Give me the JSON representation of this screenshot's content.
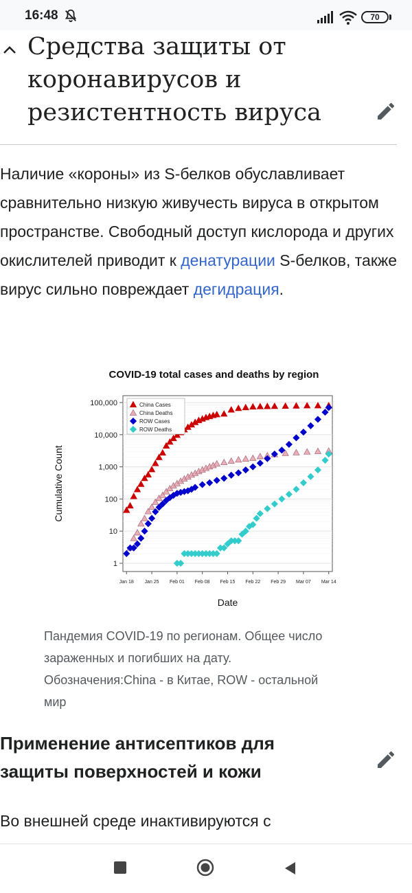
{
  "status_bar": {
    "time": "16:48",
    "battery": "70"
  },
  "section1": {
    "title": "Средства защиты от коронавирусов и резистентность вируса",
    "paragraph": {
      "t1": "Наличие «короны» из S-белков обуславливает сравнительно низкую живучесть вируса в открытом пространстве. Свободный доступ кислорода и других окислителей приводит к ",
      "link1": "денатурации",
      "t2": " S-белков, также вирус сильно повреждает ",
      "link2": "дегидрация",
      "t3": "."
    }
  },
  "figure": {
    "caption": "Пандемия COVID-19 по регионам. Общее число зараженных и погибших на дату. Обозначения:China - в Китае, ROW - остальной мир"
  },
  "chart_data": {
    "type": "scatter",
    "title": "COVID-19 total cases and deaths by region",
    "xlabel": "Date",
    "ylabel": "Cumulative Count",
    "y_scale": "log",
    "ylim": [
      1,
      100000
    ],
    "y_ticks": [
      "1",
      "10",
      "100",
      "1,000",
      "10,000",
      "100,000"
    ],
    "x_ticks": [
      "Jan 18",
      "Jan 25",
      "Feb 01",
      "Feb 08",
      "Feb 15",
      "Feb 22",
      "Feb 29",
      "Mar 07",
      "Mar 14"
    ],
    "x_start": "Jan 17",
    "legend_position": "top-left",
    "series": [
      {
        "name": "China Cases",
        "color": "#cc0000",
        "marker": "triangle",
        "x": [
          1,
          2,
          3,
          4,
          5,
          6,
          7,
          8,
          9,
          10,
          11,
          12,
          13,
          14,
          15,
          16,
          17,
          18,
          19,
          20,
          21,
          22,
          23,
          24,
          25,
          26,
          28,
          30,
          32,
          34,
          36,
          38,
          40,
          42,
          45,
          48,
          51,
          54,
          57
        ],
        "y": [
          45,
          62,
          121,
          198,
          291,
          440,
          571,
          830,
          1287,
          1975,
          2744,
          4515,
          5974,
          7711,
          9692,
          11791,
          14380,
          17205,
          20438,
          24324,
          28018,
          31161,
          34546,
          37198,
          40171,
          42638,
          44653,
          59804,
          66492,
          70548,
          74185,
          75700,
          76288,
          77150,
          78064,
          79356,
          80409,
          80754,
          80860
        ]
      },
      {
        "name": "China Deaths",
        "color": "#e8b0b8",
        "marker": "triangle-open",
        "x": [
          2,
          3,
          4,
          5,
          6,
          7,
          8,
          9,
          10,
          11,
          12,
          13,
          14,
          15,
          16,
          17,
          18,
          19,
          20,
          21,
          22,
          23,
          24,
          25,
          26,
          28,
          30,
          32,
          34,
          36,
          38,
          40,
          42,
          45,
          48,
          51,
          54,
          57
        ],
        "y": [
          3,
          6,
          9,
          17,
          25,
          41,
          56,
          80,
          106,
          132,
          170,
          213,
          259,
          304,
          361,
          425,
          490,
          563,
          636,
          722,
          811,
          908,
          1016,
          1113,
          1259,
          1380,
          1523,
          1665,
          1770,
          1868,
          2118,
          2236,
          2442,
          2663,
          2788,
          2945,
          3062,
          3120
        ]
      },
      {
        "name": "ROW Cases",
        "color": "#0000cc",
        "marker": "diamond",
        "x": [
          1,
          2,
          3,
          4,
          5,
          6,
          7,
          8,
          9,
          10,
          11,
          12,
          13,
          14,
          15,
          16,
          17,
          18,
          19,
          20,
          22,
          24,
          26,
          28,
          30,
          32,
          34,
          36,
          38,
          40,
          42,
          44,
          46,
          48,
          50,
          52,
          54,
          56,
          57
        ],
        "y": [
          2,
          3,
          3,
          4,
          6,
          10,
          17,
          25,
          40,
          55,
          70,
          90,
          110,
          130,
          150,
          160,
          170,
          180,
          200,
          230,
          280,
          320,
          380,
          440,
          550,
          650,
          800,
          1000,
          1300,
          1800,
          2500,
          3300,
          5000,
          8000,
          12000,
          19000,
          30000,
          50000,
          70000
        ]
      },
      {
        "name": "ROW Deaths",
        "color": "#33cccc",
        "marker": "diamond",
        "x": [
          15,
          16,
          17,
          18,
          19,
          20,
          21,
          22,
          23,
          24,
          25,
          26,
          27,
          28,
          29,
          30,
          31,
          32,
          33,
          34,
          35,
          36,
          37,
          38,
          40,
          42,
          44,
          46,
          48,
          50,
          52,
          54,
          56,
          57
        ],
        "y": [
          1,
          1,
          2,
          2,
          2,
          2,
          2,
          2,
          2,
          2,
          2,
          2,
          3,
          3,
          4,
          5,
          5,
          5,
          8,
          10,
          14,
          16,
          25,
          35,
          50,
          70,
          100,
          140,
          200,
          320,
          500,
          800,
          1600,
          2500
        ]
      }
    ]
  }
}
